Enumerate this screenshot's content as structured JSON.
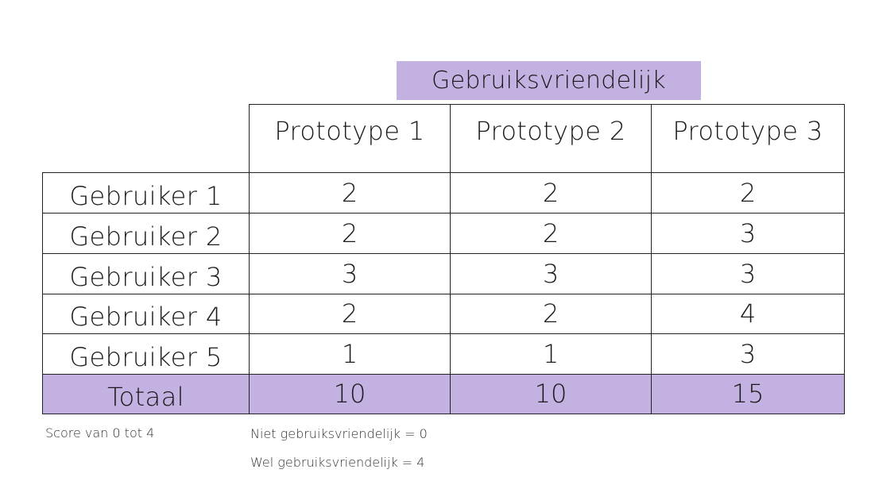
{
  "title": "Gebruiksvriendelijk",
  "columns": [
    "Prototype 1",
    "Prototype 2",
    "Prototype 3"
  ],
  "rows": [
    {
      "label": "Gebruiker 1",
      "values": [
        "2",
        "2",
        "2"
      ]
    },
    {
      "label": "Gebruiker 2",
      "values": [
        "2",
        "2",
        "3"
      ]
    },
    {
      "label": "Gebruiker 3",
      "values": [
        "3",
        "3",
        "3"
      ]
    },
    {
      "label": "Gebruiker 4",
      "values": [
        "2",
        "2",
        "4"
      ]
    },
    {
      "label": "Gebruiker 5",
      "values": [
        "1",
        "1",
        "3"
      ]
    }
  ],
  "total": {
    "label": "Totaal",
    "values": [
      "10",
      "10",
      "15"
    ]
  },
  "notes": {
    "score_range": "Score van 0 tot 4",
    "low": "Niet gebruiksvriendelijk = 0",
    "high": "Wel gebruiksvriendelijk = 4"
  },
  "colors": {
    "accent": "#c3b1e1",
    "border": "#222222"
  }
}
